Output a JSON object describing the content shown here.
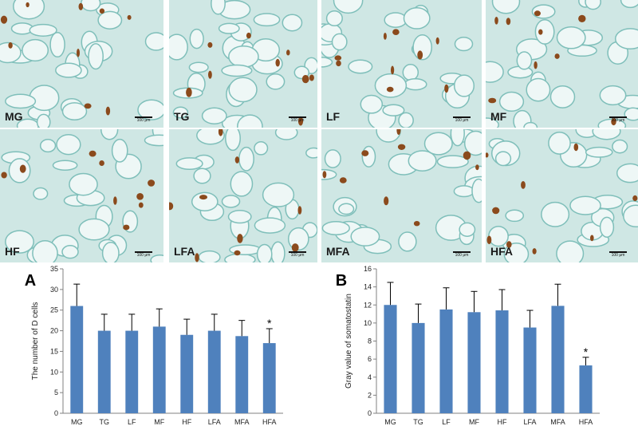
{
  "micrographs": [
    {
      "label": "MG",
      "scale": "100 μm"
    },
    {
      "label": "TG",
      "scale": "100 μm"
    },
    {
      "label": "LF",
      "scale": "100 μm"
    },
    {
      "label": "MF",
      "scale": "100 μm"
    },
    {
      "label": "HF",
      "scale": "100 μm"
    },
    {
      "label": "LFA",
      "scale": "100 μm"
    },
    {
      "label": "MFA",
      "scale": "100 μm"
    },
    {
      "label": "HFA",
      "scale": "100 μm"
    }
  ],
  "colors": {
    "bar": "#4f81bd",
    "stain": "#8b4a1c",
    "tissue": "#cfe7e4",
    "tissue_dark": "#7fbfba"
  },
  "chart_data": [
    {
      "panel": "A",
      "type": "bar",
      "ylabel": "The number of D cells",
      "xlabel": "",
      "categories": [
        "MG",
        "TG",
        "LF",
        "MF",
        "HF",
        "LFA",
        "MFA",
        "HFA"
      ],
      "values": [
        26,
        20,
        20,
        21,
        19,
        20,
        18.7,
        17
      ],
      "errors": [
        5.3,
        4,
        4,
        4.3,
        3.8,
        4,
        3.8,
        3.5
      ],
      "significant": [
        "",
        "",
        "",
        "",
        "",
        "",
        "",
        "*"
      ],
      "ylim": [
        0,
        35
      ],
      "yticks": [
        0,
        5,
        10,
        15,
        20,
        25,
        30,
        35
      ],
      "grid": false
    },
    {
      "panel": "B",
      "type": "bar",
      "ylabel": "Gray value of somatostatin",
      "xlabel": "",
      "categories": [
        "MG",
        "TG",
        "LF",
        "MF",
        "HF",
        "LFA",
        "MFA",
        "HFA"
      ],
      "values": [
        12,
        10,
        11.5,
        11.2,
        11.4,
        9.5,
        11.9,
        5.3
      ],
      "errors": [
        2.5,
        2.1,
        2.4,
        2.3,
        2.3,
        1.9,
        2.4,
        0.9
      ],
      "significant": [
        "",
        "",
        "",
        "",
        "",
        "",
        "",
        "*"
      ],
      "ylim": [
        0,
        16
      ],
      "yticks": [
        0,
        2,
        4,
        6,
        8,
        10,
        12,
        14,
        16
      ],
      "grid": false
    }
  ]
}
